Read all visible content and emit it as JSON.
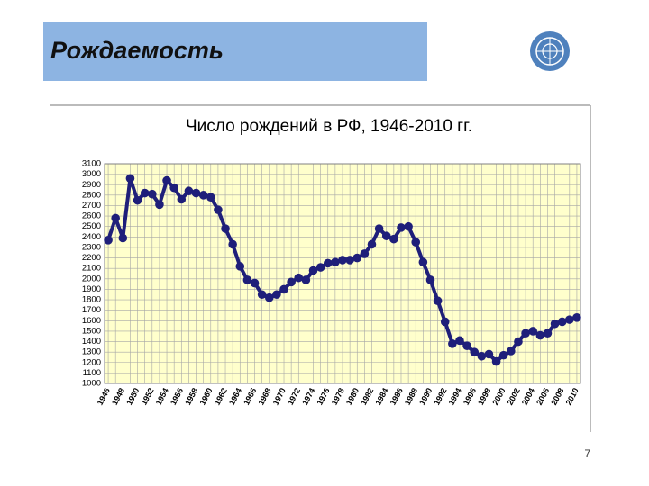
{
  "header": {
    "title": "Рождаемость"
  },
  "page_number": 7,
  "chart_data": {
    "type": "line",
    "title": "Число рождений в РФ, 1946-2010 гг.",
    "categories": [
      "1946",
      null,
      "1948",
      null,
      "1950",
      null,
      "1952",
      null,
      "1954",
      null,
      "1956",
      null,
      "1958",
      null,
      "1960",
      null,
      "1962",
      null,
      "1964",
      null,
      "1966",
      null,
      "1968",
      null,
      "1970",
      null,
      "1972",
      null,
      "1974",
      null,
      "1976",
      null,
      "1978",
      null,
      "1980",
      null,
      "1982",
      null,
      "1984",
      null,
      "1986",
      null,
      "1988",
      null,
      "1990",
      null,
      "1992",
      null,
      "1994",
      null,
      "1996",
      null,
      "1998",
      null,
      "2000",
      null,
      "2002",
      null,
      "2004",
      null,
      "2006",
      null,
      "2008",
      null,
      "2010"
    ],
    "series": [
      {
        "color": "#1f1f7a",
        "values": [
          2370,
          2580,
          2390,
          2960,
          2750,
          2820,
          2810,
          2710,
          2940,
          2870,
          2760,
          2840,
          2820,
          2800,
          2780,
          2660,
          2480,
          2330,
          2120,
          1990,
          1960,
          1850,
          1820,
          1850,
          1900,
          1970,
          2010,
          1990,
          2080,
          2110,
          2150,
          2160,
          2180,
          2180,
          2200,
          2240,
          2330,
          2480,
          2410,
          2380,
          2490,
          2500,
          2350,
          2160,
          1990,
          1790,
          1590,
          1380,
          1410,
          1360,
          1300,
          1260,
          1280,
          1210,
          1270,
          1310,
          1400,
          1480,
          1500,
          1460,
          1480,
          1570,
          1590,
          1610,
          1630
        ]
      }
    ],
    "ylim": [
      1000,
      3100
    ],
    "yticks": [
      1000,
      1100,
      1200,
      1300,
      1400,
      1500,
      1600,
      1700,
      1800,
      1900,
      2000,
      2100,
      2200,
      2300,
      2400,
      2500,
      2600,
      2700,
      2800,
      2900,
      3000,
      3100
    ],
    "grid": true,
    "background": "#ffffcc"
  }
}
